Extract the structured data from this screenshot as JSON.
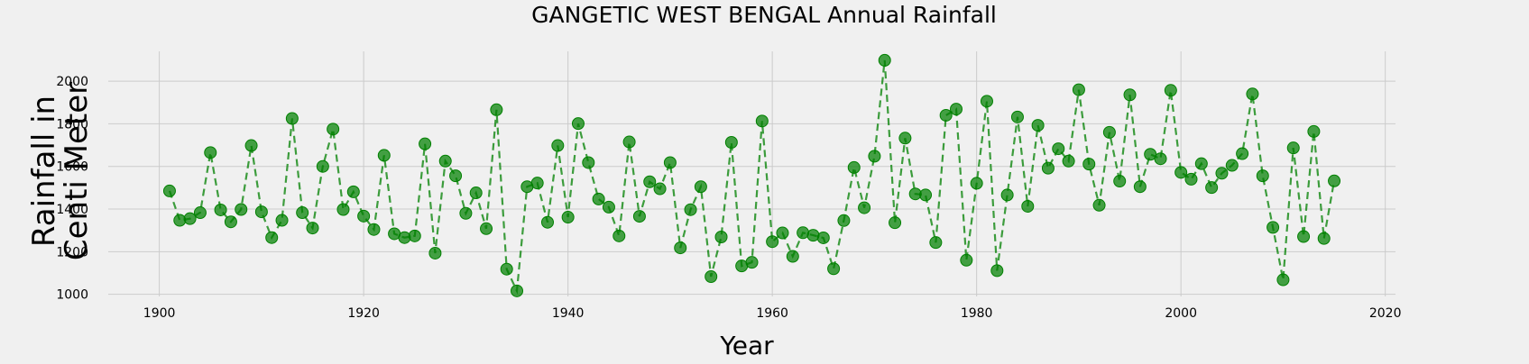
{
  "colors": {
    "background": "#f0f0f0",
    "grid": "#cbcbcb",
    "series": "#008000"
  },
  "chart_data": {
    "type": "line",
    "title": "GANGETIC WEST BENGAL Annual Rainfall",
    "xlabel": "Year",
    "ylabel_lines": [
      "Rainfall in",
      "Centi Meter"
    ],
    "xlim": [
      1895,
      2021
    ],
    "ylim": [
      990,
      2140
    ],
    "x_ticks": [
      1900,
      1920,
      1940,
      1960,
      1980,
      2000,
      2020
    ],
    "y_ticks": [
      1000,
      1200,
      1400,
      1600,
      1800,
      2000
    ],
    "grid": true,
    "marker": "circle",
    "line_style": "dashed",
    "x": [
      1901,
      1902,
      1903,
      1904,
      1905,
      1906,
      1907,
      1908,
      1909,
      1910,
      1911,
      1912,
      1913,
      1914,
      1915,
      1916,
      1917,
      1918,
      1919,
      1920,
      1921,
      1922,
      1923,
      1924,
      1925,
      1926,
      1927,
      1928,
      1929,
      1930,
      1931,
      1932,
      1933,
      1934,
      1935,
      1936,
      1937,
      1938,
      1939,
      1940,
      1941,
      1942,
      1943,
      1944,
      1945,
      1946,
      1947,
      1948,
      1949,
      1950,
      1951,
      1952,
      1953,
      1954,
      1955,
      1956,
      1957,
      1958,
      1959,
      1960,
      1961,
      1962,
      1963,
      1964,
      1965,
      1966,
      1967,
      1968,
      1969,
      1970,
      1971,
      1972,
      1973,
      1974,
      1975,
      1976,
      1977,
      1978,
      1979,
      1980,
      1981,
      1982,
      1983,
      1984,
      1985,
      1986,
      1987,
      1988,
      1989,
      1990,
      1991,
      1992,
      1993,
      1994,
      1995,
      1996,
      1997,
      1998,
      1999,
      2000,
      2001,
      2002,
      2003,
      2004,
      2005,
      2006,
      2007,
      2008,
      2009,
      2010,
      2011,
      2012,
      2013,
      2014,
      2015
    ],
    "y": [
      1485,
      1347,
      1355,
      1383,
      1665,
      1396,
      1340,
      1398,
      1698,
      1387,
      1266,
      1347,
      1825,
      1383,
      1311,
      1600,
      1775,
      1398,
      1481,
      1367,
      1304,
      1652,
      1284,
      1266,
      1274,
      1706,
      1193,
      1625,
      1556,
      1380,
      1476,
      1308,
      1866,
      1118,
      1016,
      1505,
      1522,
      1338,
      1698,
      1362,
      1801,
      1618,
      1447,
      1409,
      1274,
      1715,
      1366,
      1528,
      1495,
      1618,
      1218,
      1397,
      1505,
      1083,
      1269,
      1713,
      1133,
      1150,
      1813,
      1247,
      1288,
      1178,
      1289,
      1277,
      1265,
      1120,
      1346,
      1595,
      1406,
      1648,
      2098,
      1336,
      1733,
      1471,
      1466,
      1243,
      1840,
      1869,
      1160,
      1521,
      1906,
      1111,
      1466,
      1832,
      1413,
      1793,
      1592,
      1683,
      1625,
      1960,
      1611,
      1418,
      1760,
      1531,
      1936,
      1505,
      1657,
      1636,
      1957,
      1572,
      1540,
      1613,
      1501,
      1568,
      1605,
      1660,
      1940,
      1556,
      1314,
      1068,
      1687,
      1271,
      1764,
      1262,
      1532
    ]
  }
}
